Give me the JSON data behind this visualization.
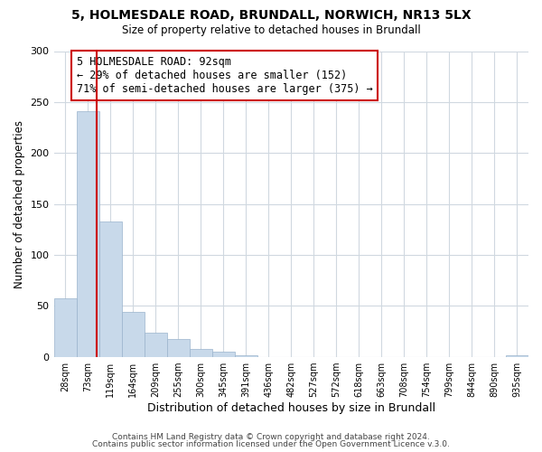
{
  "title1": "5, HOLMESDALE ROAD, BRUNDALL, NORWICH, NR13 5LX",
  "title2": "Size of property relative to detached houses in Brundall",
  "xlabel": "Distribution of detached houses by size in Brundall",
  "ylabel": "Number of detached properties",
  "bin_labels": [
    "28sqm",
    "73sqm",
    "119sqm",
    "164sqm",
    "209sqm",
    "255sqm",
    "300sqm",
    "345sqm",
    "391sqm",
    "436sqm",
    "482sqm",
    "527sqm",
    "572sqm",
    "618sqm",
    "663sqm",
    "708sqm",
    "754sqm",
    "799sqm",
    "844sqm",
    "890sqm",
    "935sqm"
  ],
  "bar_heights": [
    57,
    241,
    133,
    44,
    24,
    17,
    8,
    5,
    1,
    0,
    0,
    0,
    0,
    0,
    0,
    0,
    0,
    0,
    0,
    0,
    1
  ],
  "bar_color": "#c8d9ea",
  "bar_edge_color": "#9ab4cc",
  "vline_color": "#cc0000",
  "property_sqm": 92,
  "bin_start_sqm": [
    28,
    73,
    119,
    164,
    209,
    255,
    300,
    345,
    391,
    436,
    482,
    527,
    572,
    618,
    663,
    708,
    754,
    799,
    844,
    890,
    935
  ],
  "ylim": [
    0,
    300
  ],
  "yticks": [
    0,
    50,
    100,
    150,
    200,
    250,
    300
  ],
  "annotation_title": "5 HOLMESDALE ROAD: 92sqm",
  "annotation_line1": "← 29% of detached houses are smaller (152)",
  "annotation_line2": "71% of semi-detached houses are larger (375) →",
  "footer1": "Contains HM Land Registry data © Crown copyright and database right 2024.",
  "footer2": "Contains public sector information licensed under the Open Government Licence v.3.0.",
  "box_color": "#cc0000",
  "background_color": "#ffffff",
  "grid_color": "#d0d8e0"
}
